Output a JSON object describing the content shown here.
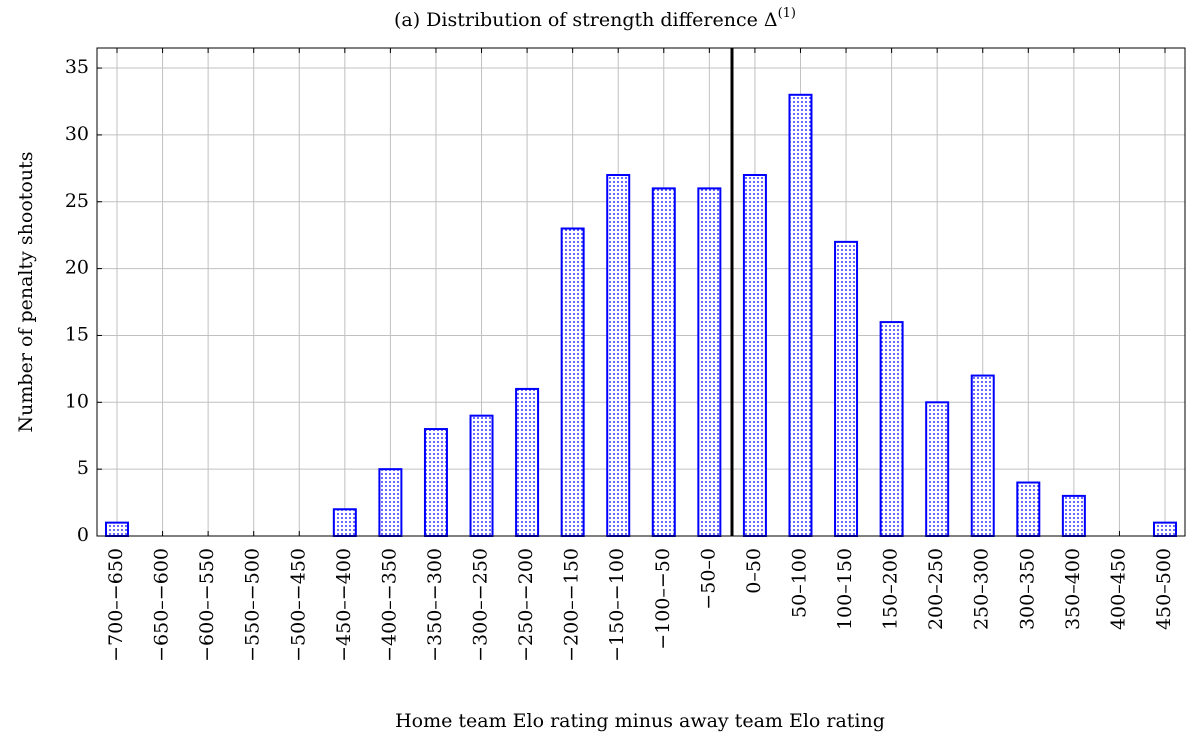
{
  "chart_data": {
    "type": "bar",
    "title": "(a) Distribution of strength difference Δ",
    "title_superscript": "(1)",
    "x_label": "Home team Elo rating minus away team Elo rating",
    "y_label": "Number of penalty shootouts",
    "categories": [
      "−700–−650",
      "−650–−600",
      "−600–−550",
      "−550–−500",
      "−500–−450",
      "−450–−400",
      "−400–−350",
      "−350–−300",
      "−300–−250",
      "−250–−200",
      "−200–−150",
      "−150–−100",
      "−100–−50",
      "−50–0",
      "0–50",
      "50–100",
      "100–150",
      "150–200",
      "200–250",
      "250–300",
      "300–350",
      "350–400",
      "400–450",
      "450–500"
    ],
    "values": [
      1,
      0,
      0,
      0,
      0,
      2,
      5,
      8,
      9,
      11,
      23,
      27,
      26,
      26,
      27,
      33,
      22,
      16,
      10,
      12,
      4,
      3,
      0,
      1
    ],
    "color": "#0000ff",
    "ylim": [
      0,
      36.5
    ],
    "yticks": [
      0,
      5,
      10,
      15,
      20,
      25,
      30,
      35
    ],
    "grid": true
  }
}
